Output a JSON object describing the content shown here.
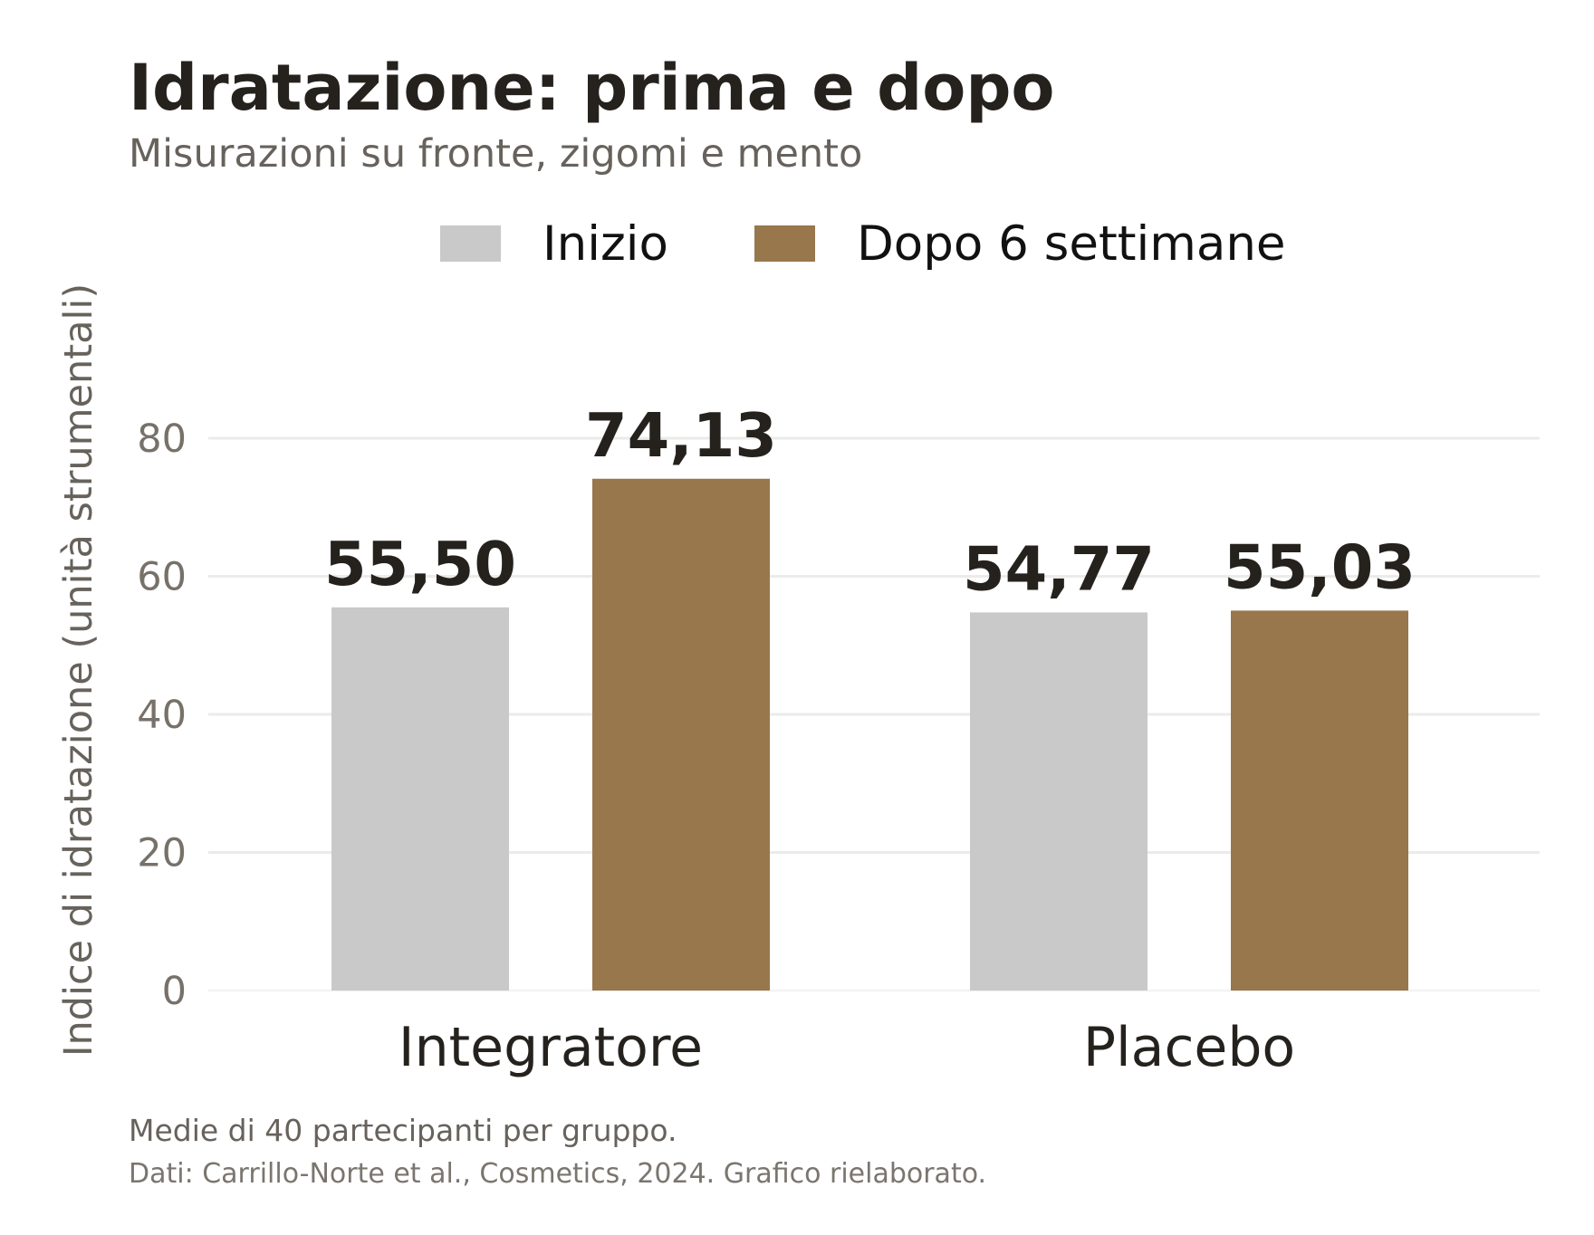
{
  "chart_data": {
    "type": "bar",
    "title": "Idratazione: prima e dopo",
    "subtitle": "Misurazioni su fronte, zigomi e mento",
    "xlabel": "",
    "ylabel": "Indice di idratazione (unità strumentali)",
    "categories": [
      "Integratore",
      "Placebo"
    ],
    "series": [
      {
        "name": "Inizio",
        "color": "#c8c9c8",
        "values": [
          55.5,
          54.77
        ],
        "labels": [
          "55,50",
          "54,77"
        ]
      },
      {
        "name": "Dopo 6 settimane",
        "color": "#98774d",
        "values": [
          74.13,
          55.03
        ],
        "labels": [
          "74,13",
          "55,03"
        ]
      }
    ],
    "ylim": [
      0,
      80
    ],
    "yticks": [
      0,
      20,
      40,
      60,
      80
    ],
    "ytick_labels": [
      "0",
      "20",
      "40",
      "60",
      "80"
    ],
    "grid": true,
    "legend_position": "top"
  },
  "footnote": "Medie di 40 partecipanti per gruppo.",
  "source": "Dati: Carrillo-Norte et al., Cosmetics, 2024. Grafico rielaborato."
}
